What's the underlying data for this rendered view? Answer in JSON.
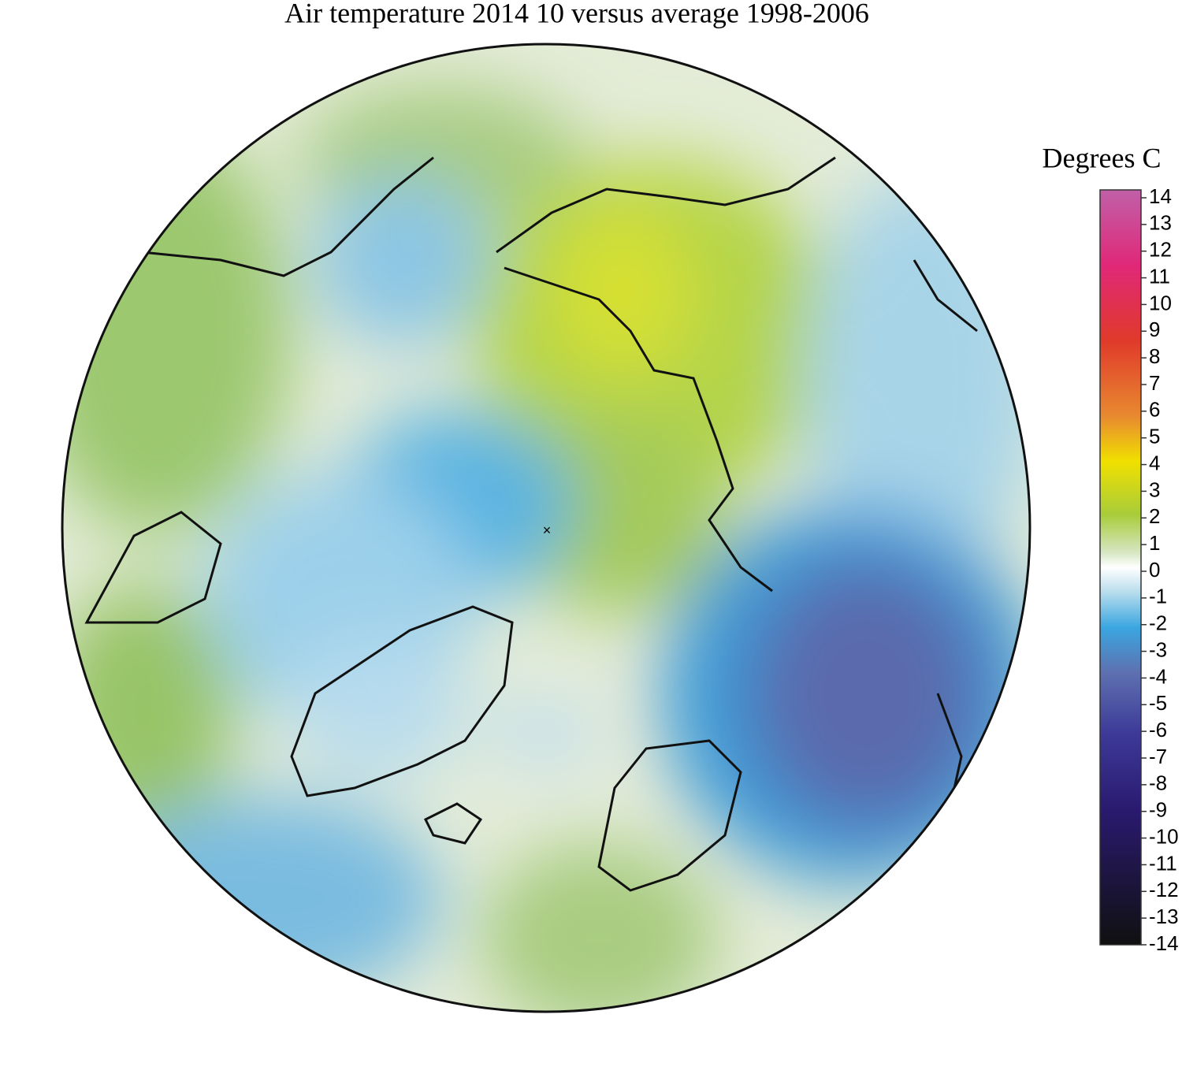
{
  "title": "Air temperature 2014 10 versus average 1998-2006",
  "colorbar": {
    "label": "Degrees C",
    "range": [
      -14,
      14
    ],
    "ticks": [
      14,
      13,
      12,
      11,
      10,
      9,
      8,
      7,
      6,
      5,
      4,
      3,
      2,
      1,
      0,
      -1,
      -2,
      -3,
      -4,
      -5,
      -6,
      -7,
      -8,
      -9,
      -10,
      -11,
      -12,
      -13,
      -14
    ]
  }
}
